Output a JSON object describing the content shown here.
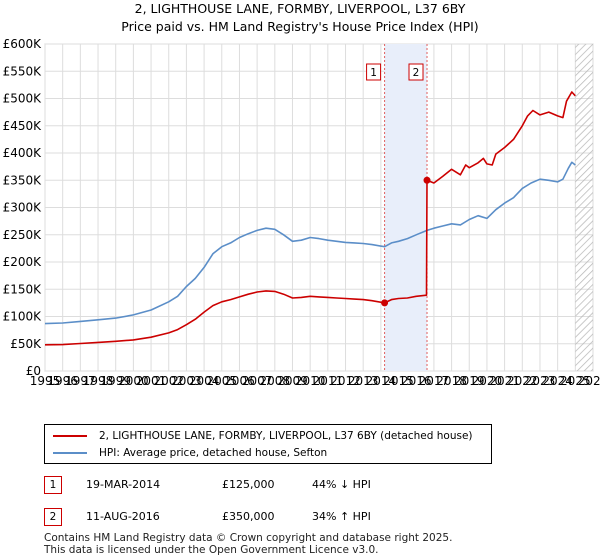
{
  "chart_data": {
    "type": "line",
    "title": "2, LIGHTHOUSE LANE, FORMBY, LIVERPOOL, L37 6BY",
    "subtitle": "Price paid vs. HM Land Registry's House Price Index (HPI)",
    "xlim": [
      1995,
      2026
    ],
    "ylim": [
      0,
      600000
    ],
    "x_ticks": [
      "1995",
      "1996",
      "1997",
      "1998",
      "1999",
      "2000",
      "2001",
      "2002",
      "2003",
      "2004",
      "2005",
      "2006",
      "2007",
      "2008",
      "2009",
      "2010",
      "2011",
      "2012",
      "2013",
      "2014",
      "2015",
      "2016",
      "2017",
      "2018",
      "2019",
      "2020",
      "2021",
      "2022",
      "2023",
      "2024",
      "2025",
      "2026"
    ],
    "y_ticks": [
      {
        "value": 0,
        "label": "£0"
      },
      {
        "value": 50000,
        "label": "£50K"
      },
      {
        "value": 100000,
        "label": "£100K"
      },
      {
        "value": 150000,
        "label": "£150K"
      },
      {
        "value": 200000,
        "label": "£200K"
      },
      {
        "value": 250000,
        "label": "£250K"
      },
      {
        "value": 300000,
        "label": "£300K"
      },
      {
        "value": 350000,
        "label": "£350K"
      },
      {
        "value": 400000,
        "label": "£400K"
      },
      {
        "value": 450000,
        "label": "£450K"
      },
      {
        "value": 500000,
        "label": "£500K"
      },
      {
        "value": 550000,
        "label": "£550K"
      },
      {
        "value": 600000,
        "label": "£600K"
      }
    ],
    "grid": true,
    "series": [
      {
        "name": "2, LIGHTHOUSE LANE, FORMBY, LIVERPOOL, L37 6BY (detached house)",
        "color": "#cc0000",
        "points": [
          [
            1995.0,
            48000
          ],
          [
            1996.0,
            48500
          ],
          [
            1997.0,
            50500
          ],
          [
            1998.0,
            52500
          ],
          [
            1999.0,
            54500
          ],
          [
            2000.0,
            57000
          ],
          [
            2001.0,
            62000
          ],
          [
            2002.0,
            70000
          ],
          [
            2002.5,
            76000
          ],
          [
            2003.0,
            85000
          ],
          [
            2003.5,
            95000
          ],
          [
            2004.0,
            108000
          ],
          [
            2004.5,
            120000
          ],
          [
            2005.0,
            127000
          ],
          [
            2005.5,
            131000
          ],
          [
            2006.0,
            136000
          ],
          [
            2006.5,
            141000
          ],
          [
            2007.0,
            145000
          ],
          [
            2007.5,
            147000
          ],
          [
            2008.0,
            146000
          ],
          [
            2008.5,
            141000
          ],
          [
            2009.0,
            134000
          ],
          [
            2009.5,
            135000
          ],
          [
            2010.0,
            137000
          ],
          [
            2010.5,
            136000
          ],
          [
            2011.0,
            135000
          ],
          [
            2011.5,
            134000
          ],
          [
            2012.0,
            133000
          ],
          [
            2012.5,
            132000
          ],
          [
            2013.0,
            131000
          ],
          [
            2013.5,
            129000
          ],
          [
            2014.21,
            125000
          ],
          [
            2014.6,
            131000
          ],
          [
            2015.0,
            133000
          ],
          [
            2015.5,
            134000
          ],
          [
            2016.0,
            137000
          ],
          [
            2016.58,
            139000
          ],
          [
            2016.61,
            350000
          ],
          [
            2017.0,
            345000
          ],
          [
            2017.5,
            357000
          ],
          [
            2017.8,
            365000
          ],
          [
            2018.0,
            370000
          ],
          [
            2018.5,
            360000
          ],
          [
            2018.8,
            378000
          ],
          [
            2019.0,
            373000
          ],
          [
            2019.5,
            382000
          ],
          [
            2019.8,
            390000
          ],
          [
            2020.0,
            380000
          ],
          [
            2020.3,
            378000
          ],
          [
            2020.5,
            398000
          ],
          [
            2021.0,
            410000
          ],
          [
            2021.5,
            425000
          ],
          [
            2022.0,
            450000
          ],
          [
            2022.3,
            468000
          ],
          [
            2022.6,
            478000
          ],
          [
            2023.0,
            470000
          ],
          [
            2023.5,
            475000
          ],
          [
            2024.0,
            468000
          ],
          [
            2024.3,
            465000
          ],
          [
            2024.5,
            495000
          ],
          [
            2024.8,
            512000
          ],
          [
            2025.0,
            505000
          ]
        ]
      },
      {
        "name": "HPI: Average price, detached house, Sefton",
        "color": "#5b8ec8",
        "points": [
          [
            1995.0,
            87000
          ],
          [
            1996.0,
            88000
          ],
          [
            1997.0,
            91000
          ],
          [
            1998.0,
            94000
          ],
          [
            1999.0,
            97000
          ],
          [
            2000.0,
            103000
          ],
          [
            2001.0,
            112000
          ],
          [
            2002.0,
            127000
          ],
          [
            2002.5,
            137000
          ],
          [
            2003.0,
            155000
          ],
          [
            2003.5,
            170000
          ],
          [
            2004.0,
            190000
          ],
          [
            2004.5,
            215000
          ],
          [
            2005.0,
            228000
          ],
          [
            2005.5,
            235000
          ],
          [
            2006.0,
            245000
          ],
          [
            2006.5,
            252000
          ],
          [
            2007.0,
            258000
          ],
          [
            2007.5,
            262000
          ],
          [
            2008.0,
            260000
          ],
          [
            2008.5,
            250000
          ],
          [
            2009.0,
            238000
          ],
          [
            2009.5,
            240000
          ],
          [
            2010.0,
            245000
          ],
          [
            2010.5,
            243000
          ],
          [
            2011.0,
            240000
          ],
          [
            2011.5,
            238000
          ],
          [
            2012.0,
            236000
          ],
          [
            2012.5,
            235000
          ],
          [
            2013.0,
            234000
          ],
          [
            2013.5,
            232000
          ],
          [
            2014.21,
            228000
          ],
          [
            2014.6,
            235000
          ],
          [
            2015.0,
            238000
          ],
          [
            2015.5,
            243000
          ],
          [
            2016.0,
            250000
          ],
          [
            2016.61,
            258000
          ],
          [
            2017.0,
            262000
          ],
          [
            2017.5,
            266000
          ],
          [
            2018.0,
            270000
          ],
          [
            2018.5,
            268000
          ],
          [
            2019.0,
            278000
          ],
          [
            2019.5,
            285000
          ],
          [
            2020.0,
            280000
          ],
          [
            2020.5,
            296000
          ],
          [
            2021.0,
            308000
          ],
          [
            2021.5,
            318000
          ],
          [
            2022.0,
            335000
          ],
          [
            2022.5,
            345000
          ],
          [
            2023.0,
            352000
          ],
          [
            2023.5,
            350000
          ],
          [
            2024.0,
            347000
          ],
          [
            2024.3,
            352000
          ],
          [
            2024.6,
            372000
          ],
          [
            2024.8,
            383000
          ],
          [
            2025.0,
            378000
          ]
        ]
      }
    ],
    "transactions": [
      {
        "id": "1",
        "x": 2014.21,
        "price": 125000,
        "date": "19-MAR-2014",
        "price_label": "£125,000",
        "hpi": "44% ↓ HPI"
      },
      {
        "id": "2",
        "x": 2016.61,
        "price": 350000,
        "date": "11-AUG-2016",
        "price_label": "£350,000",
        "hpi": "34% ↑ HPI"
      }
    ],
    "shaded_band": [
      2014.21,
      2016.61
    ],
    "hatched_from": 2025.0,
    "colors": {
      "shade": "#e8eefa",
      "vline": "#e06060",
      "grid": "#dddddd"
    }
  },
  "legend": {
    "property_label": "2, LIGHTHOUSE LANE, FORMBY, LIVERPOOL, L37 6BY (detached house)",
    "hpi_label": "HPI: Average price, detached house, Sefton"
  },
  "footer": {
    "line1": "Contains HM Land Registry data © Crown copyright and database right 2025.",
    "line2": "This data is licensed under the Open Government Licence v3.0."
  }
}
